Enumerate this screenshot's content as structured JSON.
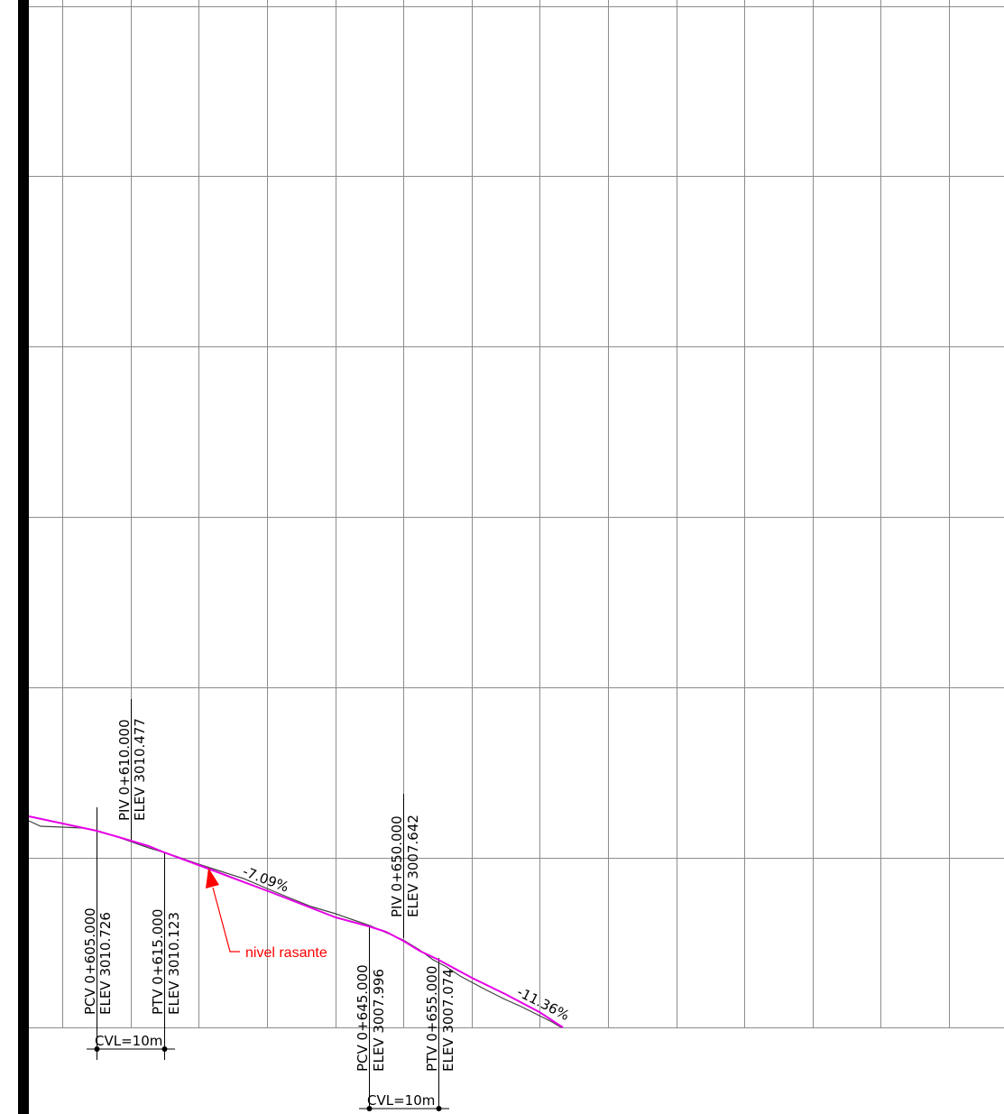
{
  "colors": {
    "background": "#ffffff",
    "grid": "#8c8c8c",
    "left_bar": "#000000",
    "design_grade": "#e600e6",
    "terrain": "#404040",
    "annotation": "#ff0000",
    "text": "#000000"
  },
  "vertical_curves": [
    {
      "pcv": {
        "station": "PCV  0+605.000",
        "elev": "ELEV  3010.726"
      },
      "piv": {
        "station": "PIV  0+610.000",
        "elev": "ELEV  3010.477"
      },
      "ptv": {
        "station": "PTV  0+615.000",
        "elev": "ELEV  3010.123"
      },
      "cvl": "CVL=10m"
    },
    {
      "pcv": {
        "station": "PCV  0+645.000",
        "elev": "ELEV  3007.996"
      },
      "piv": {
        "station": "PIV  0+650.000",
        "elev": "ELEV  3007.642"
      },
      "ptv": {
        "station": "PTV  0+655.000",
        "elev": "ELEV  3007.074"
      },
      "cvl": "CVL=10m"
    }
  ],
  "grades": [
    "-7.09%",
    "-11.36%"
  ],
  "annotation": {
    "label": "nivel rasante",
    "arrow_icon": "arrow-up-icon"
  }
}
